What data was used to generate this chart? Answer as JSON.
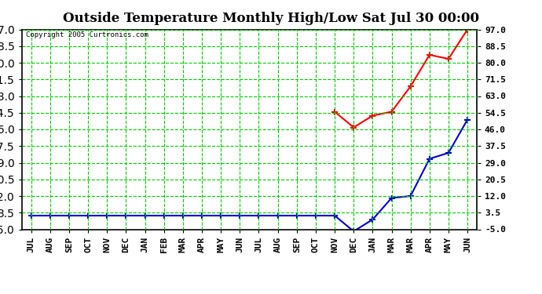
{
  "title": "Outside Temperature Monthly High/Low Sat Jul 30 00:00",
  "copyright": "Copyright 2005 Curtronics.com",
  "x_labels": [
    "JUL",
    "AUG",
    "SEP",
    "OCT",
    "NOV",
    "DEC",
    "JAN",
    "FEB",
    "MAR",
    "APR",
    "MAY",
    "JUN",
    "JUL",
    "AUG",
    "SEP",
    "OCT",
    "NOV",
    "DEC",
    "JAN",
    "MAR",
    "MAR",
    "APR",
    "MAY",
    "JUN"
  ],
  "high_values": [
    null,
    null,
    null,
    null,
    null,
    null,
    null,
    null,
    null,
    null,
    null,
    null,
    null,
    null,
    null,
    null,
    55,
    47,
    53,
    55,
    68,
    84,
    82,
    97
  ],
  "low_values": [
    2,
    2,
    2,
    2,
    2,
    2,
    2,
    2,
    2,
    2,
    2,
    2,
    2,
    2,
    2,
    2,
    2,
    -6,
    0,
    11,
    12,
    31,
    34,
    51
  ],
  "high_color": "#ff0000",
  "low_color": "#0000cc",
  "bg_color": "#ffffff",
  "grid_color": "#00cc00",
  "yticks": [
    -5.0,
    3.5,
    12.0,
    20.5,
    29.0,
    37.5,
    46.0,
    54.5,
    63.0,
    71.5,
    80.0,
    88.5,
    97.0
  ],
  "ymin": -5.0,
  "ymax": 97.0,
  "title_fontsize": 12,
  "tick_fontsize": 8
}
